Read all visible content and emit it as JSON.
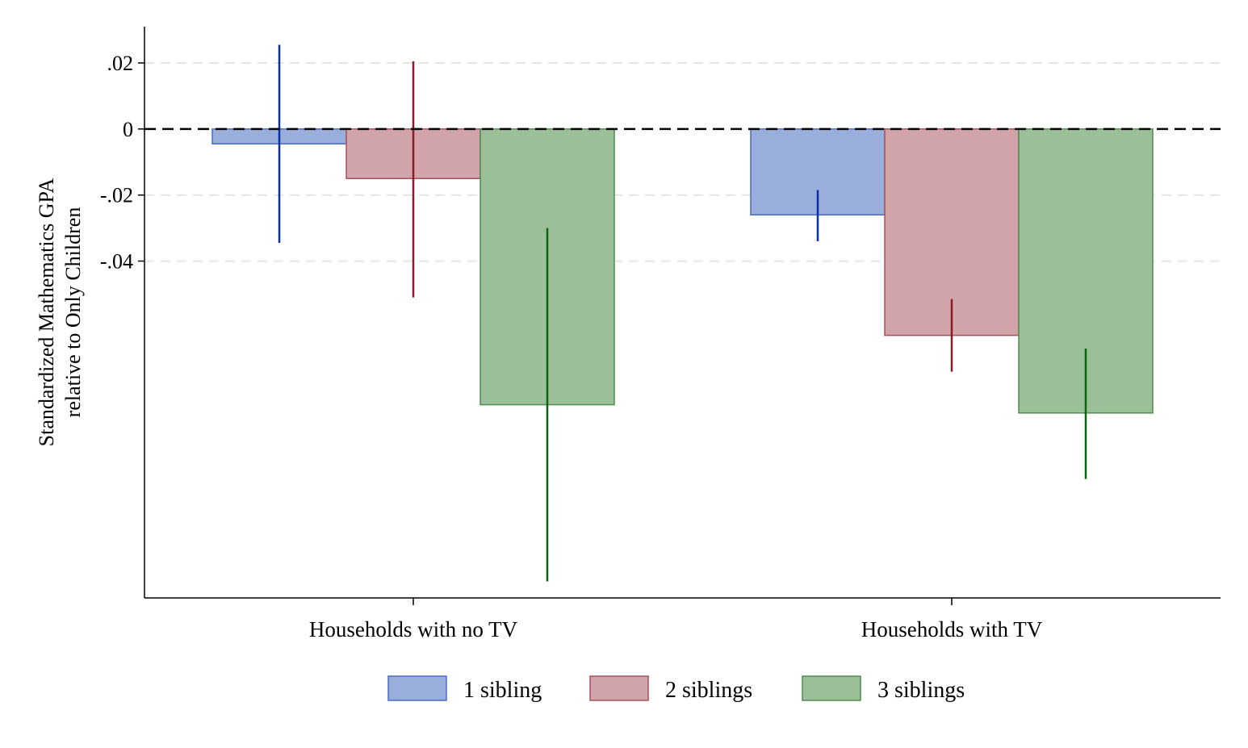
{
  "chart_data": {
    "type": "bar",
    "title": "",
    "xlabel": "",
    "ylabel_line1": "Standardized Mathematics GPA",
    "ylabel_line2": "relative to Only Children",
    "categories": [
      "Households with no TV",
      "Households with TV"
    ],
    "yticks": [
      0.02,
      0,
      -0.02,
      -0.04
    ],
    "ytick_labels": [
      ".02",
      "0",
      "-.02",
      "-.04"
    ],
    "ylim": [
      -0.142,
      0.031
    ],
    "grid": true,
    "zero_line": "dashed",
    "legend_position": "bottom",
    "series": [
      {
        "name": "1 sibling",
        "values": [
          -0.0045,
          -0.026
        ],
        "ci_low": [
          -0.0345,
          -0.034
        ],
        "ci_high": [
          0.0255,
          -0.0185
        ],
        "color": "#9aaedb",
        "edge": "#4a6cc4",
        "errcolor": "#0a30a8"
      },
      {
        "name": "2 siblings",
        "values": [
          -0.015,
          -0.0625
        ],
        "ci_low": [
          -0.051,
          -0.0735
        ],
        "ci_high": [
          0.0205,
          -0.0515
        ],
        "color": "#d0a4a8",
        "edge": "#a8505c",
        "errcolor": "#8b1a28"
      },
      {
        "name": "3 siblings",
        "values": [
          -0.0835,
          -0.086
        ],
        "ci_low": [
          -0.137,
          -0.106
        ],
        "ci_high": [
          -0.03,
          -0.0665
        ],
        "color": "#9bbf98",
        "edge": "#4e8e4e",
        "errcolor": "#0b6410"
      }
    ]
  }
}
